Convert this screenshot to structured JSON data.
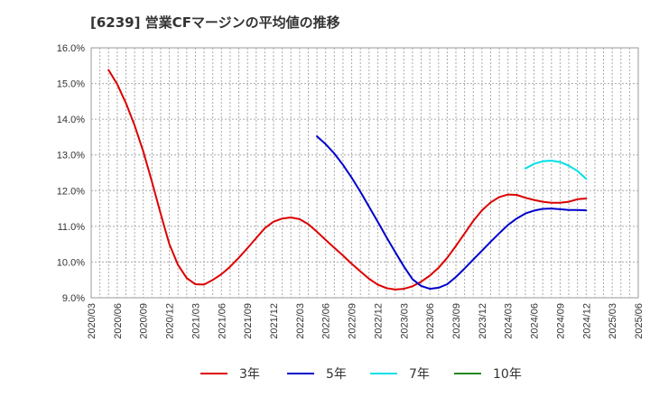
{
  "title": "[6239]  営業CFマージンの平均値の推移",
  "chart_data": {
    "type": "line",
    "title": "[6239]  営業CFマージンの平均値の推移",
    "xlabel": "",
    "ylabel": "",
    "ylim": [
      9.0,
      16.0
    ],
    "yticks": [
      "9.0%",
      "10.0%",
      "11.0%",
      "12.0%",
      "13.0%",
      "14.0%",
      "15.0%",
      "16.0%"
    ],
    "xticks": [
      "2020/03",
      "2020/06",
      "2020/09",
      "2020/12",
      "2021/03",
      "2021/06",
      "2021/09",
      "2021/12",
      "2022/03",
      "2022/06",
      "2022/09",
      "2022/12",
      "2023/03",
      "2023/06",
      "2023/09",
      "2023/12",
      "2024/03",
      "2024/06",
      "2024/09",
      "2024/12",
      "2025/03",
      "2025/06"
    ],
    "grid": true,
    "legend_position": "bottom",
    "series": [
      {
        "name": "3年",
        "color": "#dd0000",
        "x": [
          "2020/05",
          "2020/06",
          "2020/07",
          "2020/08",
          "2020/09",
          "2020/10",
          "2020/11",
          "2020/12",
          "2021/01",
          "2021/02",
          "2021/03",
          "2021/04",
          "2021/05",
          "2021/06",
          "2021/07",
          "2021/08",
          "2021/09",
          "2021/10",
          "2021/11",
          "2021/12",
          "2022/01",
          "2022/02",
          "2022/03",
          "2022/04",
          "2022/05",
          "2022/06",
          "2022/07",
          "2022/08",
          "2022/09",
          "2022/10",
          "2022/11",
          "2022/12",
          "2023/01",
          "2023/02",
          "2023/03",
          "2023/04",
          "2023/05",
          "2023/06",
          "2023/07",
          "2023/08",
          "2023/09",
          "2023/10",
          "2023/11",
          "2023/12",
          "2024/01",
          "2024/02",
          "2024/03",
          "2024/04",
          "2024/05",
          "2024/06",
          "2024/07",
          "2024/08",
          "2024/09",
          "2024/10",
          "2024/11",
          "2024/12"
        ],
        "values": [
          15.38,
          14.98,
          14.45,
          13.83,
          13.1,
          12.25,
          11.35,
          10.5,
          9.92,
          9.55,
          9.38,
          9.37,
          9.5,
          9.66,
          9.87,
          10.12,
          10.39,
          10.67,
          10.95,
          11.13,
          11.22,
          11.25,
          11.2,
          11.06,
          10.85,
          10.62,
          10.4,
          10.18,
          9.95,
          9.74,
          9.53,
          9.37,
          9.27,
          9.23,
          9.25,
          9.32,
          9.45,
          9.62,
          9.84,
          10.12,
          10.45,
          10.8,
          11.15,
          11.45,
          11.67,
          11.82,
          11.89,
          11.88,
          11.8,
          11.74,
          11.69,
          11.66,
          11.66,
          11.69,
          11.76,
          11.78
        ]
      },
      {
        "name": "5年",
        "color": "#0000cc",
        "x": [
          "2022/05",
          "2022/06",
          "2022/07",
          "2022/08",
          "2022/09",
          "2022/10",
          "2022/11",
          "2022/12",
          "2023/01",
          "2023/02",
          "2023/03",
          "2023/04",
          "2023/05",
          "2023/06",
          "2023/07",
          "2023/08",
          "2023/09",
          "2023/10",
          "2023/11",
          "2023/12",
          "2024/01",
          "2024/02",
          "2024/03",
          "2024/04",
          "2024/05",
          "2024/06",
          "2024/07",
          "2024/08",
          "2024/09",
          "2024/10",
          "2024/11",
          "2024/12"
        ],
        "values": [
          13.52,
          13.3,
          13.04,
          12.72,
          12.36,
          11.97,
          11.55,
          11.13,
          10.7,
          10.28,
          9.88,
          9.52,
          9.33,
          9.25,
          9.28,
          9.38,
          9.58,
          9.82,
          10.07,
          10.32,
          10.57,
          10.81,
          11.04,
          11.22,
          11.36,
          11.44,
          11.49,
          11.5,
          11.48,
          11.46,
          11.46,
          11.45
        ]
      },
      {
        "name": "7年",
        "color": "#00e0e8",
        "x": [
          "2024/05",
          "2024/06",
          "2024/07",
          "2024/08",
          "2024/09",
          "2024/10",
          "2024/11",
          "2024/12"
        ],
        "values": [
          12.62,
          12.75,
          12.82,
          12.84,
          12.8,
          12.7,
          12.55,
          12.33
        ]
      },
      {
        "name": "10年",
        "color": "#228822",
        "x": [],
        "values": []
      }
    ]
  }
}
